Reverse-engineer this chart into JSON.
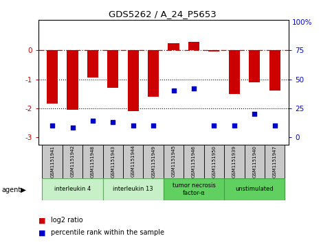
{
  "title": "GDS5262 / A_24_P5653",
  "samples": [
    "GSM1151941",
    "GSM1151942",
    "GSM1151948",
    "GSM1151943",
    "GSM1151944",
    "GSM1151949",
    "GSM1151945",
    "GSM1151946",
    "GSM1151950",
    "GSM1151939",
    "GSM1151940",
    "GSM1151947"
  ],
  "log2_ratio": [
    -1.85,
    -2.05,
    -0.95,
    -1.3,
    -2.1,
    -1.6,
    0.25,
    0.3,
    -0.05,
    -1.5,
    -1.1,
    -1.4
  ],
  "percentile": [
    10,
    8,
    14,
    13,
    10,
    10,
    40,
    42,
    10,
    10,
    20,
    10
  ],
  "agents": [
    {
      "label": "interleukin 4",
      "start": 0,
      "end": 2,
      "color": "#c8f0c8",
      "border": "#60a860"
    },
    {
      "label": "interleukin 13",
      "start": 3,
      "end": 5,
      "color": "#c8f0c8",
      "border": "#60a860"
    },
    {
      "label": "tumor necrosis\nfactor-α",
      "start": 6,
      "end": 8,
      "color": "#60d060",
      "border": "#40a040"
    },
    {
      "label": "unstimulated",
      "start": 9,
      "end": 11,
      "color": "#60d060",
      "border": "#40a040"
    }
  ],
  "ylim": [
    -3.25,
    1.05
  ],
  "yticks": [
    0,
    -1,
    -2,
    -3
  ],
  "right_ytick_labels": [
    "75",
    "50",
    "25",
    "0"
  ],
  "right_ytick_pos": [
    0,
    -1,
    -2,
    -3
  ],
  "bar_color": "#cc0000",
  "dot_color": "#0000cc",
  "background_color": "#ffffff",
  "dotted_lines": [
    -1,
    -2
  ],
  "bar_width": 0.55,
  "sample_box_color": "#c8c8c8",
  "agent_label": "agent"
}
